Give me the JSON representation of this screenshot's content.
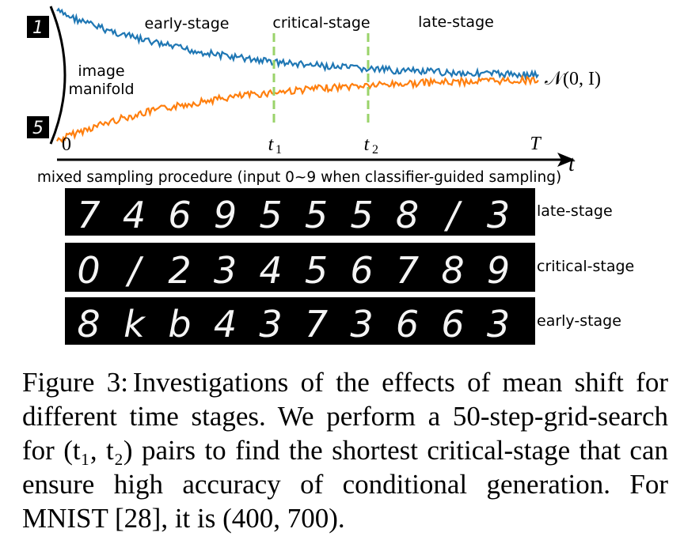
{
  "figure": {
    "stage_labels": {
      "early": "early-stage",
      "critical": "critical-stage",
      "late": "late-stage"
    },
    "manifold_label_line1": "image",
    "manifold_label_line2": "manifold",
    "gaussian_label": "𝒩(0, I)",
    "axis_ticks": {
      "zero": "0",
      "t1": "t",
      "t1_sub": "1",
      "t2": "t",
      "t2_sub": "2",
      "T": "T"
    },
    "axis_label": "t",
    "procedure_label": "mixed sampling procedure (input 0~9 when classifier-guided sampling)",
    "icon_top_digit": "1",
    "icon_bottom_digit": "5",
    "strips": [
      {
        "label": "late-stage",
        "digits": [
          "7",
          "4",
          "6",
          "9",
          "5",
          "5",
          "5",
          "8",
          "/",
          "3"
        ]
      },
      {
        "label": "critical-stage",
        "digits": [
          "0",
          "/",
          "2",
          "3",
          "4",
          "5",
          "6",
          "7",
          "8",
          "9"
        ]
      },
      {
        "label": "early-stage",
        "digits": [
          "8",
          "k",
          "b",
          "4",
          "3",
          "7",
          "3",
          "6",
          "6",
          "3"
        ]
      }
    ],
    "colors": {
      "blue_series": "#1f77b4",
      "orange_series": "#ff7f0e",
      "dashed_lines": "#9ad36a",
      "axis": "#000000",
      "strip_bg": "#000000"
    }
  },
  "caption": {
    "prefix": "Figure 3:",
    "text": "Investigations of the effects of mean shift for different time stages. We perform a 50-step-grid-search for (t₁, t₂) pairs to find the shortest critical-stage that can ensure high accuracy of conditional generation. For MNIST [28], it is (400, 700)."
  }
}
